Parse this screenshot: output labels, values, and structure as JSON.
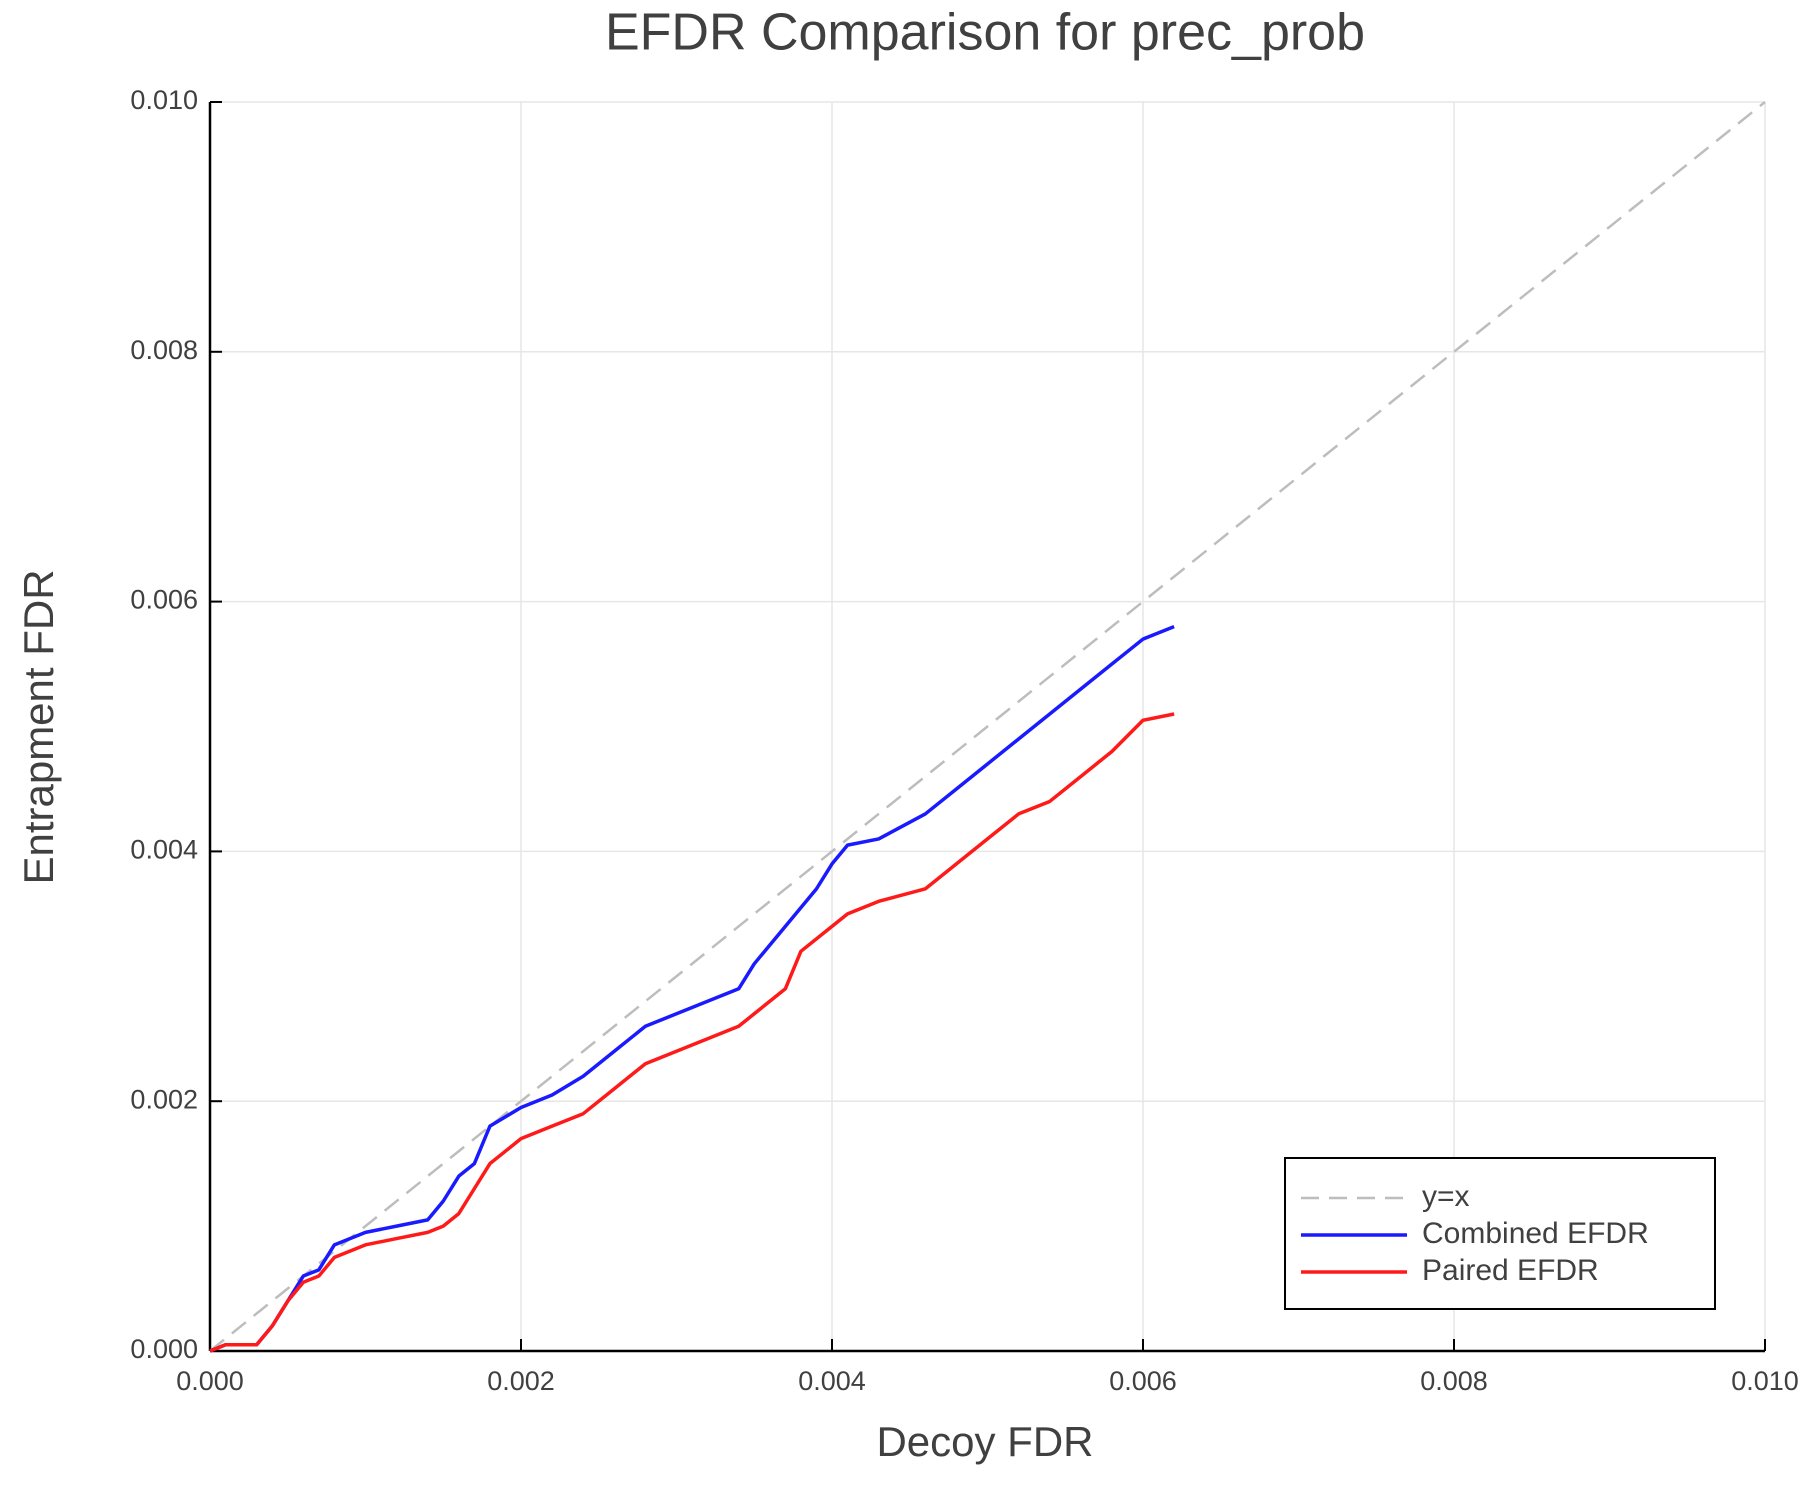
{
  "chart_data": {
    "type": "line",
    "title": "EFDR Comparison for prec_prob",
    "xlabel": "Decoy FDR",
    "ylabel": "Entrapment FDR",
    "xlim": [
      0,
      0.01
    ],
    "ylim": [
      0,
      0.01
    ],
    "xticks": [
      {
        "value": 0,
        "label": "0.000"
      },
      0.002,
      0.004,
      0.006,
      0.008,
      {
        "value": 0.01,
        "label": "0.010"
      }
    ],
    "yticks": [
      {
        "value": 0,
        "label": "0.000"
      },
      0.002,
      0.004,
      0.006,
      0.008,
      {
        "value": 0.01,
        "label": "0.010"
      }
    ],
    "grid": true,
    "legend": "bottom-right",
    "series": [
      {
        "name": "y=x",
        "color": "#bdbdbd",
        "dashed": true,
        "x": [
          0,
          0.01
        ],
        "values": [
          0,
          0.01
        ]
      },
      {
        "name": "Combined EFDR",
        "color": "#1a1aff",
        "dashed": false,
        "x": [
          0,
          0.0001,
          0.0003,
          0.0004,
          0.0005,
          0.0006,
          0.0007,
          0.0008,
          0.001,
          0.0012,
          0.0014,
          0.0015,
          0.0016,
          0.0017,
          0.0018,
          0.002,
          0.0022,
          0.0024,
          0.0026,
          0.0028,
          0.003,
          0.0032,
          0.0034,
          0.0035,
          0.0037,
          0.0039,
          0.004,
          0.0041,
          0.0043,
          0.0046,
          0.0048,
          0.005,
          0.0052,
          0.0054,
          0.0056,
          0.0058,
          0.0059,
          0.006,
          0.0062
        ],
        "values": [
          0,
          5e-05,
          5e-05,
          0.0002,
          0.0004,
          0.0006,
          0.00065,
          0.00085,
          0.00095,
          0.001,
          0.00105,
          0.0012,
          0.0014,
          0.0015,
          0.0018,
          0.00195,
          0.00205,
          0.0022,
          0.0024,
          0.0026,
          0.0027,
          0.0028,
          0.0029,
          0.0031,
          0.0034,
          0.0037,
          0.0039,
          0.00405,
          0.0041,
          0.0043,
          0.0045,
          0.0047,
          0.0049,
          0.0051,
          0.0053,
          0.0055,
          0.0056,
          0.0057,
          0.0058
        ]
      },
      {
        "name": "Paired EFDR",
        "color": "#ff1a1a",
        "dashed": false,
        "x": [
          0,
          0.0001,
          0.0003,
          0.0004,
          0.0005,
          0.0006,
          0.0007,
          0.0008,
          0.001,
          0.0012,
          0.0014,
          0.0015,
          0.0016,
          0.0017,
          0.0018,
          0.002,
          0.0022,
          0.0024,
          0.0026,
          0.0028,
          0.003,
          0.0032,
          0.0034,
          0.0035,
          0.0037,
          0.0038,
          0.004,
          0.0041,
          0.0043,
          0.0046,
          0.0048,
          0.005,
          0.0052,
          0.0054,
          0.0056,
          0.0058,
          0.006,
          0.0062
        ],
        "values": [
          0,
          5e-05,
          5e-05,
          0.0002,
          0.0004,
          0.00055,
          0.0006,
          0.00075,
          0.00085,
          0.0009,
          0.00095,
          0.001,
          0.0011,
          0.0013,
          0.0015,
          0.0017,
          0.0018,
          0.0019,
          0.0021,
          0.0023,
          0.0024,
          0.0025,
          0.0026,
          0.0027,
          0.0029,
          0.0032,
          0.0034,
          0.0035,
          0.0036,
          0.0037,
          0.0039,
          0.0041,
          0.0043,
          0.0044,
          0.0046,
          0.0048,
          0.00505,
          0.0051
        ]
      }
    ]
  }
}
